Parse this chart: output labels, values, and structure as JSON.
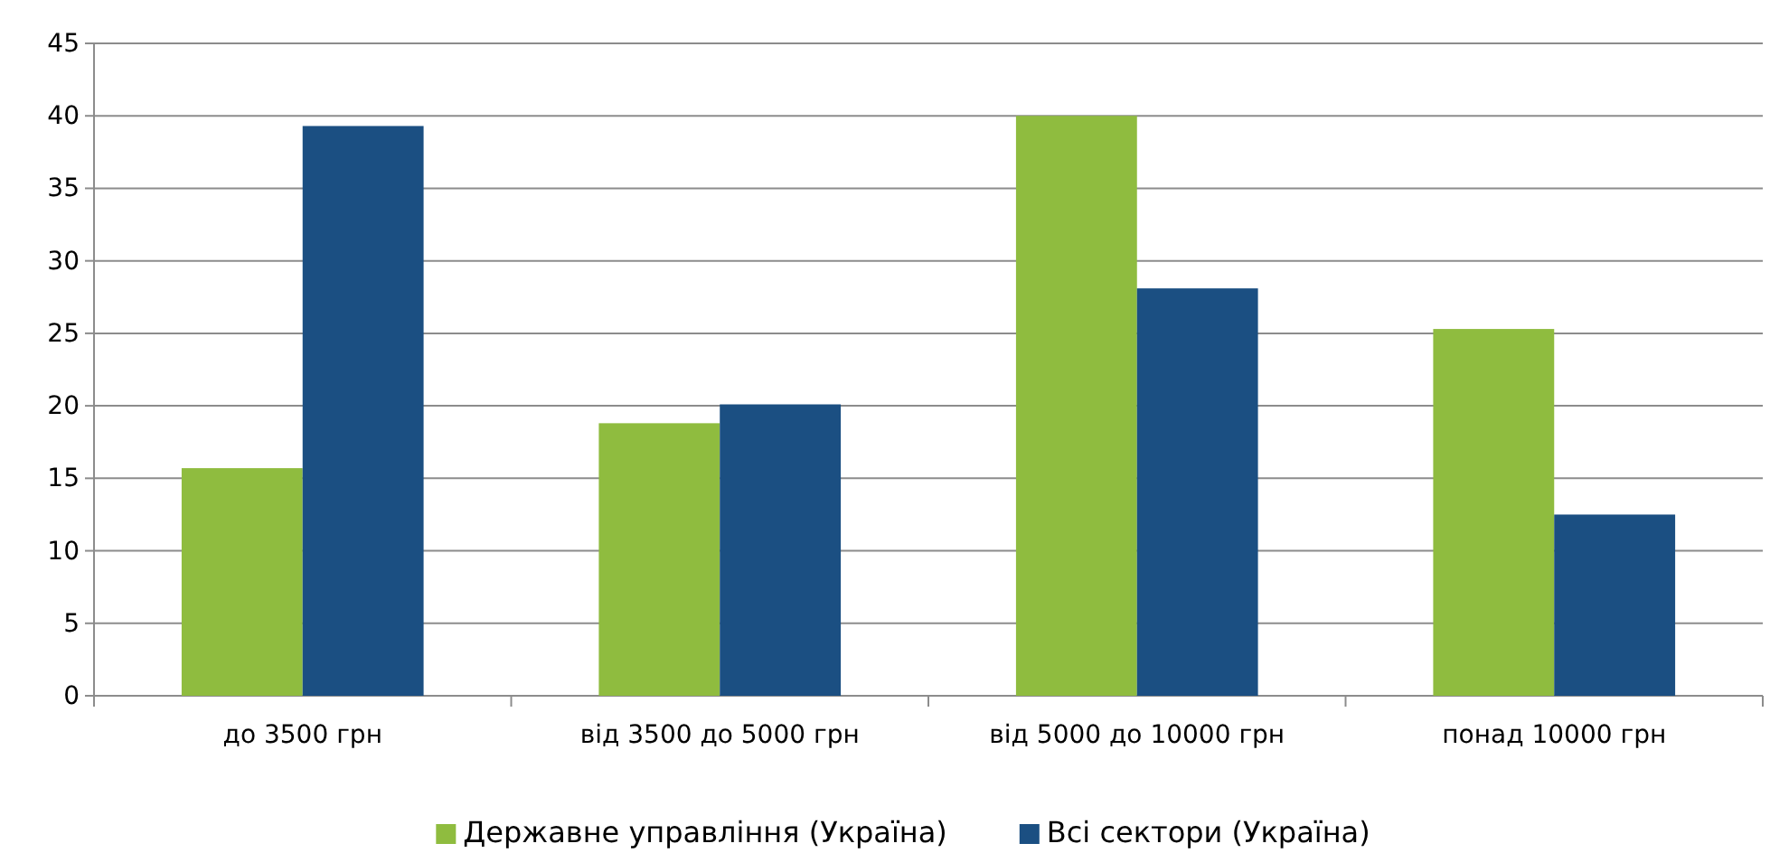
{
  "chart_data": {
    "type": "bar",
    "categories": [
      "до 3500 грн",
      "від 3500 до 5000 грн",
      "від 5000 до 10000 грн",
      "понад 10000 грн"
    ],
    "series": [
      {
        "name": "Державне управління (Україна)",
        "color": "#8fbc3f",
        "values": [
          15.7,
          18.8,
          40.0,
          25.3
        ]
      },
      {
        "name": "Всі сектори (Україна)",
        "color": "#1b4f82",
        "values": [
          39.3,
          20.1,
          28.1,
          12.5
        ]
      }
    ],
    "ylim": [
      0,
      45
    ],
    "yticks": [
      0,
      5,
      10,
      15,
      20,
      25,
      30,
      35,
      40,
      45
    ],
    "grid": "y",
    "legend": "bottom"
  }
}
